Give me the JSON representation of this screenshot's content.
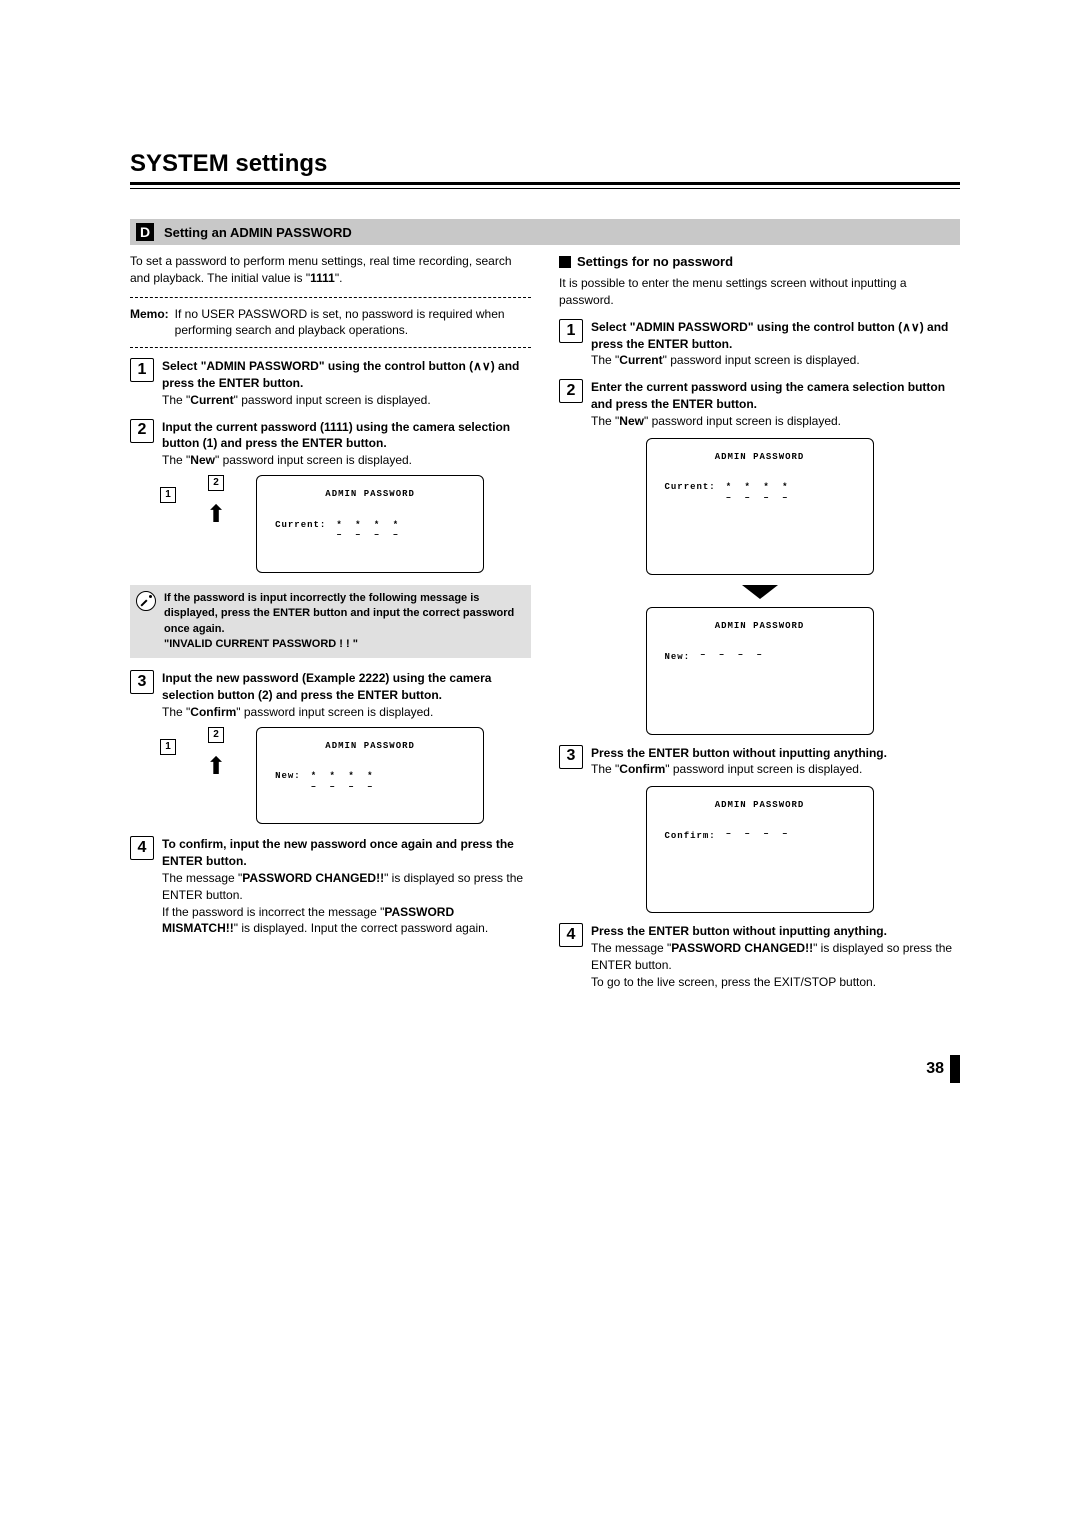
{
  "title": "SYSTEM settings",
  "section": {
    "badge": "D",
    "label": "Setting an ADMIN PASSWORD"
  },
  "left": {
    "intro_a": "To set a password to perform menu settings, real time recording, search and playback. The initial value is \"",
    "intro_bold": "1111",
    "intro_b": "\".",
    "memo_label": "Memo:",
    "memo_text": "If no USER PASSWORD is set, no password is required when performing search and playback operations.",
    "step1_head": "Select \"ADMIN PASSWORD\" using the control button (∧∨) and press the ENTER button.",
    "step1_sub_a": "The \"",
    "step1_sub_bold": "Current",
    "step1_sub_b": "\" password input screen is displayed.",
    "step2_head": "Input the current password (1111) using the camera selection button (1) and press the ENTER button.",
    "step2_sub_a": "The \"",
    "step2_sub_bold": "New",
    "step2_sub_b": "\" password input screen is displayed.",
    "screen_a": {
      "hdr": "ADMIN PASSWORD",
      "label": "Current:",
      "val": "* * * *",
      "dash": "– – – –"
    },
    "warn_a": "If the password is input incorrectly the following message is displayed, press the ENTER button and input the correct password once again.",
    "warn_b": "\"INVALID CURRENT PASSWORD ! ! \"",
    "step3_head": "Input the new password (Example 2222) using the camera selection button (2) and press the ENTER button.",
    "step3_sub_a": "The \"",
    "step3_sub_bold": "Confirm",
    "step3_sub_b": "\" password input screen is displayed.",
    "screen_b": {
      "hdr": "ADMIN PASSWORD",
      "label": "New:",
      "val": "* * * *",
      "dash": "– – – –"
    },
    "step4_head": "To confirm, input the new password once again and press the ENTER button.",
    "step4_sub_a": "The message \"",
    "step4_sub_bold": "PASSWORD CHANGED!!",
    "step4_sub_b": "\" is displayed so press the ENTER button.",
    "step4_sub_c": "If the password is incorrect the message \"",
    "step4_sub_bold2": "PASSWORD MISMATCH!!",
    "step4_sub_d": "\" is displayed. Input the correct password again."
  },
  "right": {
    "head": "Settings for no password",
    "intro": "It is possible to enter the menu settings screen without inputting a password.",
    "step1_head": "Select \"ADMIN PASSWORD\" using the control button (∧∨) and press the ENTER button.",
    "step1_sub_a": "The \"",
    "step1_sub_bold": "Current",
    "step1_sub_b": "\" password input screen is displayed.",
    "step2_head": "Enter the current password using the camera selection button and press the ENTER button.",
    "step2_sub_a": "The \"",
    "step2_sub_bold": "New",
    "step2_sub_b": "\" password input screen is displayed.",
    "screen_a": {
      "hdr": "ADMIN PASSWORD",
      "label": "Current:",
      "val": "* * * *",
      "dash": "– – – –"
    },
    "screen_b": {
      "hdr": "ADMIN PASSWORD",
      "label": "New:",
      "val": "",
      "dash": "– – – –"
    },
    "step3_head": "Press the ENTER button without inputting anything.",
    "step3_sub_a": "The \"",
    "step3_sub_bold": "Confirm",
    "step3_sub_b": "\" password input screen is displayed.",
    "screen_c": {
      "hdr": "ADMIN PASSWORD",
      "label": "Confirm:",
      "val": "",
      "dash": "– – – –"
    },
    "step4_head": "Press the ENTER button without inputting anything.",
    "step4_sub_a": "The message \"",
    "step4_sub_bold": "PASSWORD CHANGED!!",
    "step4_sub_b": "\" is displayed so press the ENTER button.",
    "step4_sub_c": "To go to the live screen, press the EXIT/STOP button."
  },
  "pagenum": "38"
}
